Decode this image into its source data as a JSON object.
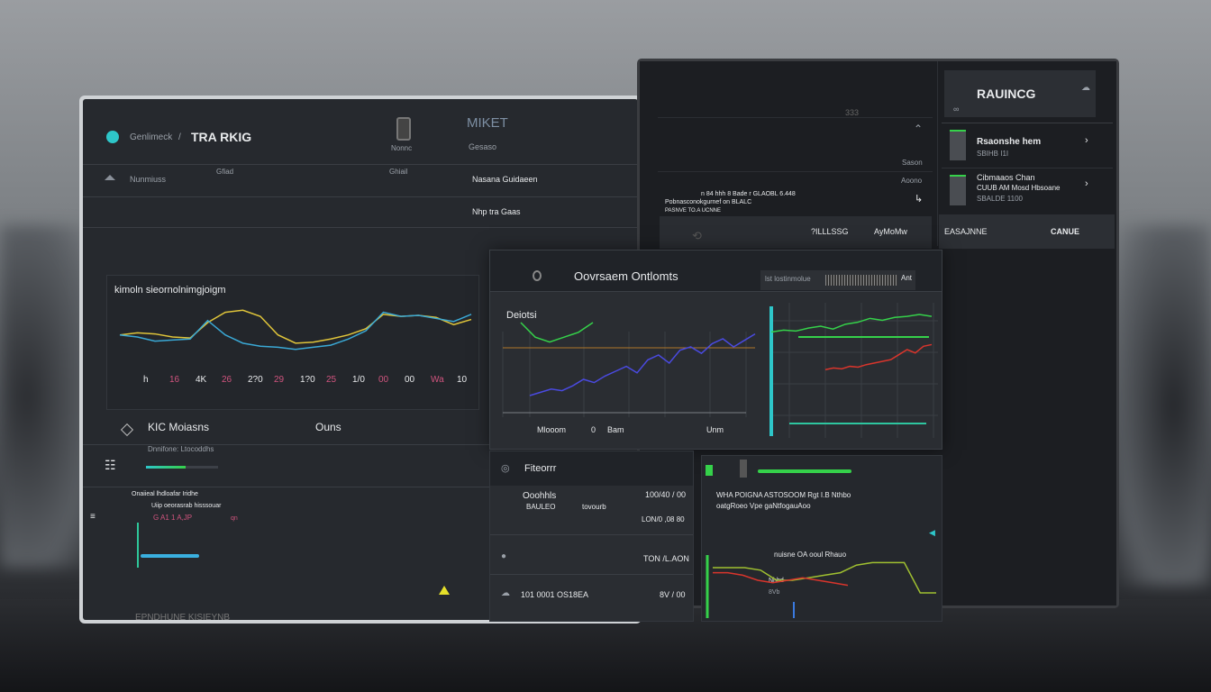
{
  "left_screen": {
    "breadcrumb_root": "Genlimeck",
    "breadcrumb_sep": "/",
    "title": "TRA RKIG",
    "phone_label": "Nonnc",
    "market_title": "MIKET",
    "market_sub": "Gesaso",
    "row2_label": "Nunmiuss",
    "row2_mid": "Gfiad",
    "row2_mid2": "Ghiail",
    "row2_right": "Nasana Guidaeen",
    "row3_right": "Nhp tra Gaas",
    "chart_title": "kimoln sieornolnimgjoigm",
    "x_ticks": [
      "h",
      "16",
      "4K",
      "26",
      "2?0",
      "29",
      "1?0",
      "25",
      "1/0",
      "00",
      "00",
      "Wa",
      "10"
    ],
    "section_title": "KIC Moiasns",
    "section_right": "Ouns",
    "section_sub": "Dnnifone: Ltocoddhs",
    "progress": 0.55,
    "list_header": "Onaiieal lhdloafar Iridhe",
    "list_item": "Uiip oeorasrab hisssouar",
    "list_item_sub": "G A1 1 A,JP",
    "list_item_tag": "qn",
    "footer": "EPNDHUNE KISIEYNB",
    "series": [
      {
        "color": "#e0c53a",
        "values": [
          60,
          62,
          61,
          58,
          57,
          72,
          82,
          84,
          78,
          60,
          52,
          53,
          56,
          60,
          66,
          80,
          78,
          79,
          77,
          70,
          75
        ]
      },
      {
        "color": "#3aa9d6",
        "values": [
          60,
          58,
          54,
          55,
          56,
          74,
          60,
          52,
          49,
          48,
          46,
          48,
          50,
          56,
          64,
          82,
          78,
          79,
          76,
          73,
          80
        ]
      }
    ]
  },
  "right_screen": {
    "top_value": "333",
    "link1": "Sason",
    "link2": "Aoono",
    "text1": "n 84 hhh 8 Bade r GLAOBL 6.448",
    "text2": "Pobnasconokgurnef on BLALC",
    "text3": "PASNVE TO.A UCNNE",
    "bar_left": "?ILLLSSG",
    "bar_right": "AyMoMw",
    "side_title": "RAUINCG",
    "items": [
      {
        "title": "Rsaonshe hem",
        "sub": "SBIHB I1I"
      },
      {
        "title": "Cibmaaos Chan",
        "sub": "CUUB AM Mosd Hbsoane",
        "sub2": "SBALDE 1100"
      }
    ],
    "side_bar_left": "EASAJNNE",
    "side_bar_right": "CANUE"
  },
  "overlay": {
    "title": "Oovrsaem Ontlomts",
    "search_placeholder": "lst lostinmolue",
    "search_btn": "Ant",
    "chart_title": "Deiotsi",
    "x_labels": [
      "Mlooom",
      "0",
      "Bam",
      "Unm"
    ],
    "chart_a": [
      0,
      2,
      4,
      3,
      6,
      10,
      8,
      12,
      15,
      18,
      14,
      22,
      25,
      20,
      28,
      30,
      26,
      32,
      35,
      30,
      34,
      38
    ],
    "chart_b_green": [
      30,
      32,
      31,
      34,
      36,
      33,
      38,
      40,
      44,
      42,
      45,
      46,
      48,
      46
    ],
    "chart_b_red": [
      10,
      12,
      11,
      14,
      13,
      16,
      18,
      20,
      22,
      28,
      34,
      30,
      38,
      40
    ],
    "filter_title": "Fiteorrr",
    "rows": [
      {
        "label": "Ooohhls",
        "sub": "BAULEO",
        "sub2": "tovourb",
        "value": "100/40 / 00"
      },
      {
        "label": "",
        "value": "LON/0 ,08 80"
      },
      {
        "label": "",
        "value": "TON /L.AON"
      },
      {
        "label": "101 0001 OS18EA",
        "value": "8V / 00"
      }
    ],
    "alert1": "WHA POIGNA ASTOSOOM Rgt I.B Nthbo",
    "alert2": "oatgRoeo Vpe gaNtfogauAoo",
    "mini_chart_title": "nuisne OA ooul Rhauo",
    "mini_chart_sub": "Nhbd",
    "mini_chart_sub2": "8Vb"
  },
  "colors": {
    "accent_cyan": "#2ec6c9",
    "green": "#35d14a",
    "red": "#d8352c",
    "blue": "#4a4ae0",
    "pink": "#d0547e"
  }
}
